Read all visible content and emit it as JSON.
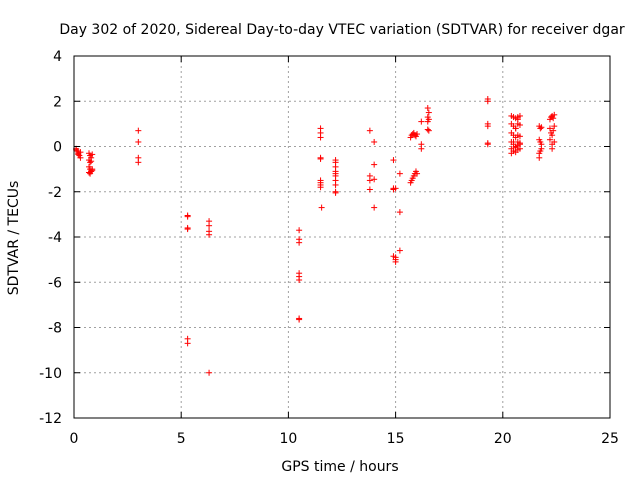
{
  "chart_data": {
    "type": "scatter",
    "title": "Day 302 of 2020, Sidereal Day-to-day VTEC variation (SDTVAR) for receiver dgar",
    "xlabel": "GPS time / hours",
    "ylabel": "SDTVAR / TECUs",
    "xlim": [
      0,
      25
    ],
    "ylim": [
      -12,
      4
    ],
    "xticks": [
      0,
      5,
      10,
      15,
      20,
      25
    ],
    "yticks": [
      -12,
      -10,
      -8,
      -6,
      -4,
      -2,
      0,
      2,
      4
    ],
    "grid": true,
    "marker": "+",
    "color": "#ff0000",
    "series": [
      {
        "name": "SDTVAR",
        "x": [
          0.1,
          0.15,
          0.2,
          0.25,
          0.3,
          0.1,
          0.2,
          0.3,
          0.7,
          0.75,
          0.8,
          0.85,
          0.7,
          0.75,
          0.8,
          0.7,
          0.75,
          0.8,
          0.85,
          0.7,
          0.75,
          0.8,
          0.85,
          3.0,
          3.0,
          3.0,
          3.0,
          5.3,
          5.3,
          5.3,
          5.3,
          5.3,
          5.3,
          6.3,
          6.3,
          6.3,
          6.3,
          6.3,
          10.5,
          10.5,
          10.5,
          10.5,
          10.5,
          10.5,
          10.5,
          10.5,
          11.5,
          11.5,
          11.5,
          11.5,
          11.5,
          11.5,
          11.5,
          11.5,
          11.5,
          11.55,
          12.2,
          12.2,
          12.2,
          12.2,
          12.2,
          12.2,
          12.2,
          12.2,
          12.2,
          12.2,
          13.8,
          13.8,
          13.8,
          13.8,
          14.0,
          14.0,
          14.0,
          14.0,
          14.9,
          14.9,
          14.9,
          14.9,
          15.0,
          15.0,
          15.0,
          15.0,
          15.2,
          15.2,
          15.2,
          15.7,
          15.75,
          15.8,
          15.85,
          15.9,
          15.95,
          16.0,
          15.7,
          15.75,
          15.8,
          15.85,
          15.9,
          15.95,
          16.0,
          16.2,
          16.2,
          16.2,
          16.5,
          16.55,
          16.5,
          16.55,
          16.5,
          16.55,
          16.5,
          19.3,
          19.3,
          19.3,
          19.3,
          19.3,
          19.3,
          20.4,
          20.5,
          20.6,
          20.7,
          20.8,
          20.4,
          20.5,
          20.6,
          20.7,
          20.8,
          20.4,
          20.5,
          20.6,
          20.7,
          20.8,
          20.4,
          20.5,
          20.6,
          20.7,
          20.8,
          20.4,
          20.5,
          20.6,
          20.7,
          20.8,
          20.4,
          20.5,
          20.6,
          20.7,
          20.8,
          20.5,
          20.6,
          20.7,
          21.7,
          21.75,
          21.8,
          21.7,
          21.75,
          21.8,
          21.7,
          21.75,
          21.8,
          21.7,
          22.2,
          22.25,
          22.3,
          22.35,
          22.4,
          22.2,
          22.25,
          22.3,
          22.35,
          22.4,
          22.2,
          22.3,
          22.4,
          22.3
        ],
        "y": [
          -0.1,
          -0.2,
          -0.3,
          -0.4,
          -0.5,
          -0.15,
          -0.35,
          -0.25,
          -0.3,
          -0.4,
          -0.5,
          -0.35,
          -0.6,
          -0.7,
          -0.65,
          -0.9,
          -1.0,
          -1.1,
          -1.05,
          -1.15,
          -1.2,
          -1.1,
          -1.0,
          0.7,
          0.2,
          -0.5,
          -0.7,
          -3.05,
          -3.1,
          -3.6,
          -3.65,
          -8.5,
          -8.7,
          -3.3,
          -3.5,
          -3.75,
          -3.9,
          -10.0,
          -3.7,
          -4.1,
          -4.25,
          -5.6,
          -5.75,
          -5.9,
          -7.6,
          -7.65,
          0.8,
          0.6,
          0.4,
          -0.5,
          -0.55,
          -1.5,
          -1.6,
          -1.7,
          -1.8,
          -2.7,
          -0.6,
          -0.7,
          -0.9,
          -1.1,
          -1.3,
          -1.5,
          -1.7,
          -2.0,
          -2.05,
          -1.2,
          0.7,
          -1.3,
          -1.5,
          -1.9,
          0.2,
          -0.8,
          -1.45,
          -2.7,
          -0.6,
          -1.85,
          -1.9,
          -4.85,
          -4.9,
          -5.0,
          -5.1,
          -1.85,
          -2.9,
          -4.6,
          -1.2,
          0.4,
          0.5,
          0.55,
          0.6,
          0.5,
          0.45,
          0.55,
          -1.6,
          -1.5,
          -1.4,
          -1.3,
          -1.2,
          -1.1,
          -1.2,
          1.1,
          0.1,
          -0.1,
          1.7,
          1.5,
          1.3,
          1.2,
          1.1,
          0.7,
          0.75,
          2.1,
          2.0,
          1.0,
          0.9,
          0.15,
          0.1,
          1.35,
          1.3,
          1.25,
          1.2,
          1.35,
          1.0,
          0.9,
          0.8,
          1.0,
          0.95,
          0.6,
          0.5,
          0.4,
          0.5,
          0.45,
          0.2,
          0.1,
          0.0,
          0.2,
          0.15,
          -0.1,
          -0.2,
          -0.25,
          -0.15,
          -0.1,
          -0.3,
          -0.2,
          -0.05,
          0.05,
          0.1,
          0.2,
          0.8,
          1.3,
          0.9,
          0.8,
          0.85,
          0.3,
          0.2,
          0.1,
          -0.3,
          -0.2,
          -0.1,
          -0.5,
          1.2,
          1.3,
          1.35,
          1.25,
          1.4,
          0.8,
          0.6,
          0.5,
          0.7,
          0.9,
          0.3,
          0.1,
          0.2,
          -0.1
        ]
      }
    ]
  }
}
